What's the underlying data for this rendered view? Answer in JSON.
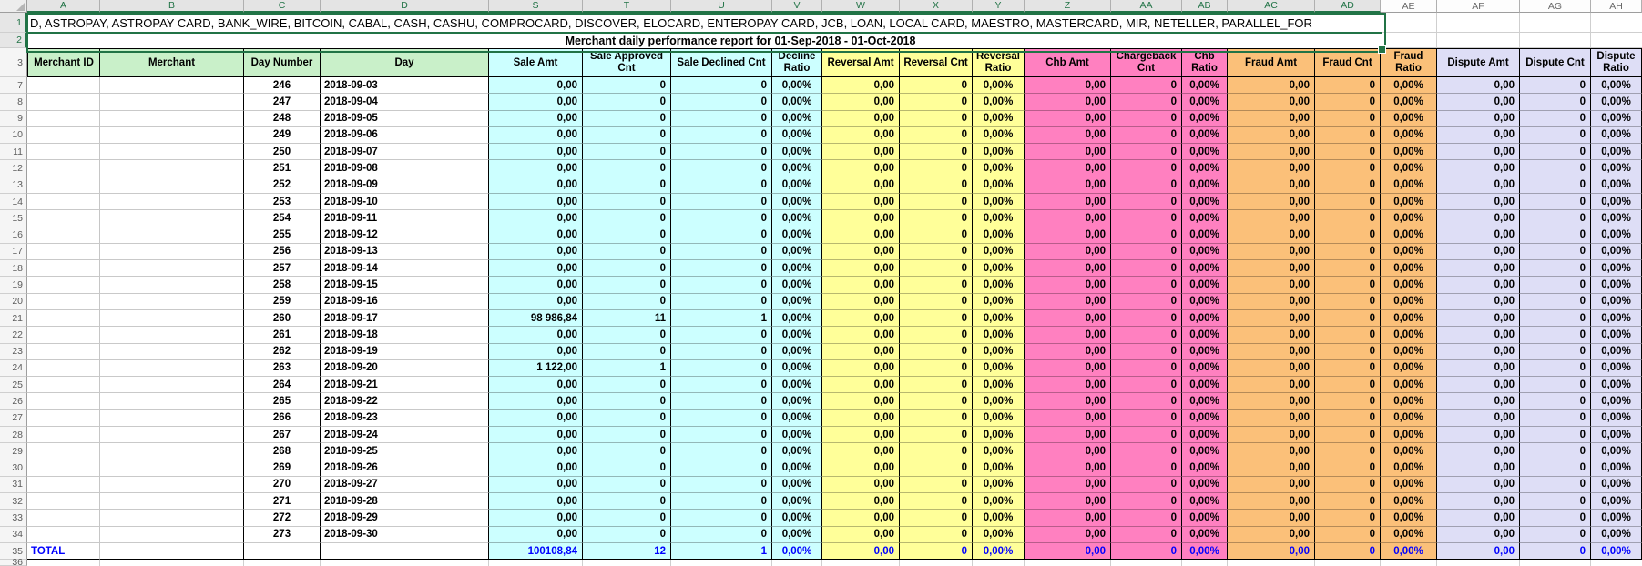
{
  "colors": {
    "green": "#c9f0c9",
    "cyan": "#ccffff",
    "yellow": "#ffff99",
    "pink": "#ff80c0",
    "orange": "#fbc079",
    "lavender": "#dedef6",
    "selection_green": "#217346",
    "total_text": "#0000ff",
    "grid": "#cfcfcf",
    "table_border": "#000000"
  },
  "column_letters": [
    {
      "letter": "A",
      "selected": true
    },
    {
      "letter": "B",
      "selected": true
    },
    {
      "letter": "C",
      "selected": true
    },
    {
      "letter": "D",
      "selected": true
    },
    {
      "letter": "S",
      "selected": true
    },
    {
      "letter": "T",
      "selected": true
    },
    {
      "letter": "U",
      "selected": true
    },
    {
      "letter": "V",
      "selected": true
    },
    {
      "letter": "W",
      "selected": true
    },
    {
      "letter": "X",
      "selected": true
    },
    {
      "letter": "Y",
      "selected": true
    },
    {
      "letter": "Z",
      "selected": true
    },
    {
      "letter": "AA",
      "selected": true
    },
    {
      "letter": "AB",
      "selected": true
    },
    {
      "letter": "AC",
      "selected": true
    },
    {
      "letter": "AD",
      "selected": true
    },
    {
      "letter": "AE",
      "selected": false
    },
    {
      "letter": "AF",
      "selected": false
    },
    {
      "letter": "AG",
      "selected": false
    },
    {
      "letter": "AH",
      "selected": false
    }
  ],
  "row1": {
    "text": "D, ASTROPAY, ASTROPAY CARD, BANK_WIRE, BITCOIN, CABAL, CASH, CASHU, COMPROCARD, DISCOVER, ELOCARD, ENTEROPAY CARD, JCB, LOAN, LOCAL CARD, MAESTRO, MASTERCARD, MIR, NETELLER, PARALLEL_FOR"
  },
  "title": {
    "text": "Merchant daily performance report for 01-Sep-2018 - 01-Oct-2018"
  },
  "table": {
    "headers": [
      {
        "label": "Merchant ID",
        "group": "green"
      },
      {
        "label": "Merchant",
        "group": "green"
      },
      {
        "label": "Day Number",
        "group": "green"
      },
      {
        "label": "Day",
        "group": "green"
      },
      {
        "label": "Sale Amt",
        "group": "cyan"
      },
      {
        "label": "Sale Approved Cnt",
        "group": "cyan"
      },
      {
        "label": "Sale Declined Cnt",
        "group": "cyan"
      },
      {
        "label": "Decline Ratio",
        "group": "cyan"
      },
      {
        "label": "Reversal Amt",
        "group": "yellow"
      },
      {
        "label": "Reversal Cnt",
        "group": "yellow"
      },
      {
        "label": "Reversal Ratio",
        "group": "yellow"
      },
      {
        "label": "Chb Amt",
        "group": "pink"
      },
      {
        "label": "Chargeback Cnt",
        "group": "pink"
      },
      {
        "label": "Chb Ratio",
        "group": "pink"
      },
      {
        "label": "Fraud Amt",
        "group": "orange"
      },
      {
        "label": "Fraud Cnt",
        "group": "orange"
      },
      {
        "label": "Fraud Ratio",
        "group": "orange"
      },
      {
        "label": "Dispute Amt",
        "group": "lavender"
      },
      {
        "label": "Dispute Cnt",
        "group": "lavender"
      },
      {
        "label": "Dispute Ratio",
        "group": "lavender"
      }
    ],
    "rows": [
      {
        "n": "7",
        "day_number": "246",
        "day": "2018-09-03",
        "values": [
          "0,00",
          "0",
          "0",
          "0,00%",
          "0,00",
          "0",
          "0,00%",
          "0,00",
          "0",
          "0,00%",
          "0,00",
          "0",
          "0,00%",
          "0,00",
          "0",
          "0,00%"
        ]
      },
      {
        "n": "8",
        "day_number": "247",
        "day": "2018-09-04",
        "values": [
          "0,00",
          "0",
          "0",
          "0,00%",
          "0,00",
          "0",
          "0,00%",
          "0,00",
          "0",
          "0,00%",
          "0,00",
          "0",
          "0,00%",
          "0,00",
          "0",
          "0,00%"
        ]
      },
      {
        "n": "9",
        "day_number": "248",
        "day": "2018-09-05",
        "values": [
          "0,00",
          "0",
          "0",
          "0,00%",
          "0,00",
          "0",
          "0,00%",
          "0,00",
          "0",
          "0,00%",
          "0,00",
          "0",
          "0,00%",
          "0,00",
          "0",
          "0,00%"
        ]
      },
      {
        "n": "10",
        "day_number": "249",
        "day": "2018-09-06",
        "values": [
          "0,00",
          "0",
          "0",
          "0,00%",
          "0,00",
          "0",
          "0,00%",
          "0,00",
          "0",
          "0,00%",
          "0,00",
          "0",
          "0,00%",
          "0,00",
          "0",
          "0,00%"
        ]
      },
      {
        "n": "11",
        "day_number": "250",
        "day": "2018-09-07",
        "values": [
          "0,00",
          "0",
          "0",
          "0,00%",
          "0,00",
          "0",
          "0,00%",
          "0,00",
          "0",
          "0,00%",
          "0,00",
          "0",
          "0,00%",
          "0,00",
          "0",
          "0,00%"
        ]
      },
      {
        "n": "12",
        "day_number": "251",
        "day": "2018-09-08",
        "values": [
          "0,00",
          "0",
          "0",
          "0,00%",
          "0,00",
          "0",
          "0,00%",
          "0,00",
          "0",
          "0,00%",
          "0,00",
          "0",
          "0,00%",
          "0,00",
          "0",
          "0,00%"
        ]
      },
      {
        "n": "13",
        "day_number": "252",
        "day": "2018-09-09",
        "values": [
          "0,00",
          "0",
          "0",
          "0,00%",
          "0,00",
          "0",
          "0,00%",
          "0,00",
          "0",
          "0,00%",
          "0,00",
          "0",
          "0,00%",
          "0,00",
          "0",
          "0,00%"
        ]
      },
      {
        "n": "14",
        "day_number": "253",
        "day": "2018-09-10",
        "values": [
          "0,00",
          "0",
          "0",
          "0,00%",
          "0,00",
          "0",
          "0,00%",
          "0,00",
          "0",
          "0,00%",
          "0,00",
          "0",
          "0,00%",
          "0,00",
          "0",
          "0,00%"
        ]
      },
      {
        "n": "15",
        "day_number": "254",
        "day": "2018-09-11",
        "values": [
          "0,00",
          "0",
          "0",
          "0,00%",
          "0,00",
          "0",
          "0,00%",
          "0,00",
          "0",
          "0,00%",
          "0,00",
          "0",
          "0,00%",
          "0,00",
          "0",
          "0,00%"
        ]
      },
      {
        "n": "16",
        "day_number": "255",
        "day": "2018-09-12",
        "values": [
          "0,00",
          "0",
          "0",
          "0,00%",
          "0,00",
          "0",
          "0,00%",
          "0,00",
          "0",
          "0,00%",
          "0,00",
          "0",
          "0,00%",
          "0,00",
          "0",
          "0,00%"
        ]
      },
      {
        "n": "17",
        "day_number": "256",
        "day": "2018-09-13",
        "values": [
          "0,00",
          "0",
          "0",
          "0,00%",
          "0,00",
          "0",
          "0,00%",
          "0,00",
          "0",
          "0,00%",
          "0,00",
          "0",
          "0,00%",
          "0,00",
          "0",
          "0,00%"
        ]
      },
      {
        "n": "18",
        "day_number": "257",
        "day": "2018-09-14",
        "values": [
          "0,00",
          "0",
          "0",
          "0,00%",
          "0,00",
          "0",
          "0,00%",
          "0,00",
          "0",
          "0,00%",
          "0,00",
          "0",
          "0,00%",
          "0,00",
          "0",
          "0,00%"
        ]
      },
      {
        "n": "19",
        "day_number": "258",
        "day": "2018-09-15",
        "values": [
          "0,00",
          "0",
          "0",
          "0,00%",
          "0,00",
          "0",
          "0,00%",
          "0,00",
          "0",
          "0,00%",
          "0,00",
          "0",
          "0,00%",
          "0,00",
          "0",
          "0,00%"
        ]
      },
      {
        "n": "20",
        "day_number": "259",
        "day": "2018-09-16",
        "values": [
          "0,00",
          "0",
          "0",
          "0,00%",
          "0,00",
          "0",
          "0,00%",
          "0,00",
          "0",
          "0,00%",
          "0,00",
          "0",
          "0,00%",
          "0,00",
          "0",
          "0,00%"
        ]
      },
      {
        "n": "21",
        "day_number": "260",
        "day": "2018-09-17",
        "values": [
          "98 986,84",
          "11",
          "1",
          "0,00%",
          "0,00",
          "0",
          "0,00%",
          "0,00",
          "0",
          "0,00%",
          "0,00",
          "0",
          "0,00%",
          "0,00",
          "0",
          "0,00%"
        ]
      },
      {
        "n": "22",
        "day_number": "261",
        "day": "2018-09-18",
        "values": [
          "0,00",
          "0",
          "0",
          "0,00%",
          "0,00",
          "0",
          "0,00%",
          "0,00",
          "0",
          "0,00%",
          "0,00",
          "0",
          "0,00%",
          "0,00",
          "0",
          "0,00%"
        ]
      },
      {
        "n": "23",
        "day_number": "262",
        "day": "2018-09-19",
        "values": [
          "0,00",
          "0",
          "0",
          "0,00%",
          "0,00",
          "0",
          "0,00%",
          "0,00",
          "0",
          "0,00%",
          "0,00",
          "0",
          "0,00%",
          "0,00",
          "0",
          "0,00%"
        ]
      },
      {
        "n": "24",
        "day_number": "263",
        "day": "2018-09-20",
        "values": [
          "1 122,00",
          "1",
          "0",
          "0,00%",
          "0,00",
          "0",
          "0,00%",
          "0,00",
          "0",
          "0,00%",
          "0,00",
          "0",
          "0,00%",
          "0,00",
          "0",
          "0,00%"
        ]
      },
      {
        "n": "25",
        "day_number": "264",
        "day": "2018-09-21",
        "values": [
          "0,00",
          "0",
          "0",
          "0,00%",
          "0,00",
          "0",
          "0,00%",
          "0,00",
          "0",
          "0,00%",
          "0,00",
          "0",
          "0,00%",
          "0,00",
          "0",
          "0,00%"
        ]
      },
      {
        "n": "26",
        "day_number": "265",
        "day": "2018-09-22",
        "values": [
          "0,00",
          "0",
          "0",
          "0,00%",
          "0,00",
          "0",
          "0,00%",
          "0,00",
          "0",
          "0,00%",
          "0,00",
          "0",
          "0,00%",
          "0,00",
          "0",
          "0,00%"
        ]
      },
      {
        "n": "27",
        "day_number": "266",
        "day": "2018-09-23",
        "values": [
          "0,00",
          "0",
          "0",
          "0,00%",
          "0,00",
          "0",
          "0,00%",
          "0,00",
          "0",
          "0,00%",
          "0,00",
          "0",
          "0,00%",
          "0,00",
          "0",
          "0,00%"
        ]
      },
      {
        "n": "28",
        "day_number": "267",
        "day": "2018-09-24",
        "values": [
          "0,00",
          "0",
          "0",
          "0,00%",
          "0,00",
          "0",
          "0,00%",
          "0,00",
          "0",
          "0,00%",
          "0,00",
          "0",
          "0,00%",
          "0,00",
          "0",
          "0,00%"
        ]
      },
      {
        "n": "29",
        "day_number": "268",
        "day": "2018-09-25",
        "values": [
          "0,00",
          "0",
          "0",
          "0,00%",
          "0,00",
          "0",
          "0,00%",
          "0,00",
          "0",
          "0,00%",
          "0,00",
          "0",
          "0,00%",
          "0,00",
          "0",
          "0,00%"
        ]
      },
      {
        "n": "30",
        "day_number": "269",
        "day": "2018-09-26",
        "values": [
          "0,00",
          "0",
          "0",
          "0,00%",
          "0,00",
          "0",
          "0,00%",
          "0,00",
          "0",
          "0,00%",
          "0,00",
          "0",
          "0,00%",
          "0,00",
          "0",
          "0,00%"
        ]
      },
      {
        "n": "31",
        "day_number": "270",
        "day": "2018-09-27",
        "values": [
          "0,00",
          "0",
          "0",
          "0,00%",
          "0,00",
          "0",
          "0,00%",
          "0,00",
          "0",
          "0,00%",
          "0,00",
          "0",
          "0,00%",
          "0,00",
          "0",
          "0,00%"
        ]
      },
      {
        "n": "32",
        "day_number": "271",
        "day": "2018-09-28",
        "values": [
          "0,00",
          "0",
          "0",
          "0,00%",
          "0,00",
          "0",
          "0,00%",
          "0,00",
          "0",
          "0,00%",
          "0,00",
          "0",
          "0,00%",
          "0,00",
          "0",
          "0,00%"
        ]
      },
      {
        "n": "33",
        "day_number": "272",
        "day": "2018-09-29",
        "values": [
          "0,00",
          "0",
          "0",
          "0,00%",
          "0,00",
          "0",
          "0,00%",
          "0,00",
          "0",
          "0,00%",
          "0,00",
          "0",
          "0,00%",
          "0,00",
          "0",
          "0,00%"
        ]
      },
      {
        "n": "34",
        "day_number": "273",
        "day": "2018-09-30",
        "values": [
          "0,00",
          "0",
          "0",
          "0,00%",
          "0,00",
          "0",
          "0,00%",
          "0,00",
          "0",
          "0,00%",
          "0,00",
          "0",
          "0,00%",
          "0,00",
          "0",
          "0,00%"
        ]
      }
    ],
    "total_row": {
      "n": "35",
      "label": "TOTAL",
      "values": [
        "100108,84",
        "12",
        "1",
        "0,00%",
        "0,00",
        "0",
        "0,00%",
        "0,00",
        "0",
        "0,00%",
        "0,00",
        "0",
        "0,00%",
        "0,00",
        "0",
        "0,00%"
      ]
    },
    "next_row_number": "36"
  }
}
